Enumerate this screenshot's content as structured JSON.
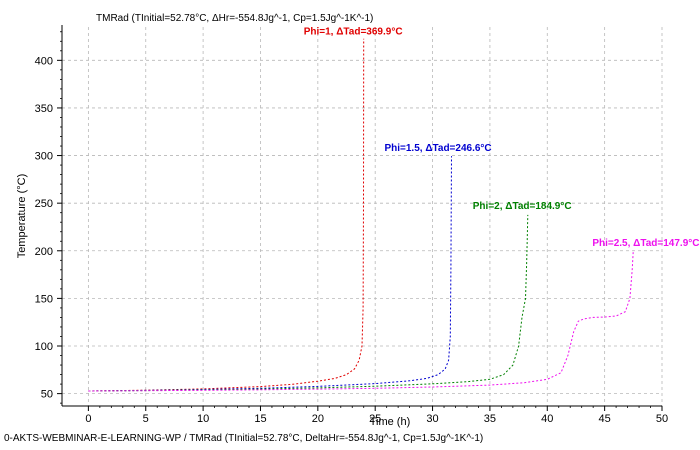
{
  "chart_data": {
    "type": "line",
    "title": "TMRad (TInitial=52.78°C, ΔHr=-554.8Jg^-1, Cp=1.5Jg^-1K^-1)",
    "xlabel": "Time (h)",
    "ylabel": "Temperature (°C)",
    "xlim": [
      -2.3,
      50
    ],
    "ylim": [
      37,
      435
    ],
    "xticks": [
      0,
      5,
      10,
      15,
      20,
      25,
      30,
      35,
      40,
      45,
      50
    ],
    "yticks": [
      50,
      100,
      150,
      200,
      250,
      300,
      350,
      400
    ],
    "grid": true,
    "series": [
      {
        "name": "Phi=1, ΔTad=369.9°C",
        "color": "#e00000",
        "points": [
          [
            0,
            52.8
          ],
          [
            5,
            53.6
          ],
          [
            10,
            55.0
          ],
          [
            15,
            57.4
          ],
          [
            18,
            60.0
          ],
          [
            20,
            63.0
          ],
          [
            21.5,
            66.0
          ],
          [
            22.5,
            70.0
          ],
          [
            23.2,
            76.0
          ],
          [
            23.6,
            85.0
          ],
          [
            23.85,
            100.0
          ],
          [
            23.95,
            140.0
          ],
          [
            23.98,
            250.0
          ],
          [
            24.0,
            422.7
          ]
        ]
      },
      {
        "name": "Phi=1.5, ΔTad=246.6°C",
        "color": "#0000d0",
        "points": [
          [
            0,
            52.8
          ],
          [
            5,
            53.4
          ],
          [
            10,
            54.3
          ],
          [
            15,
            55.6
          ],
          [
            20,
            57.6
          ],
          [
            25,
            60.5
          ],
          [
            28,
            63.5
          ],
          [
            29.5,
            66.0
          ],
          [
            30.5,
            70.0
          ],
          [
            31.1,
            76.0
          ],
          [
            31.4,
            85.0
          ],
          [
            31.55,
            110.0
          ],
          [
            31.6,
            180.0
          ],
          [
            31.65,
            299.4
          ]
        ]
      },
      {
        "name": "Phi=2, ΔTad=184.9°C",
        "color": "#008000",
        "points": [
          [
            0,
            52.8
          ],
          [
            5,
            53.2
          ],
          [
            10,
            53.8
          ],
          [
            15,
            54.7
          ],
          [
            20,
            56.0
          ],
          [
            25,
            57.8
          ],
          [
            30,
            60.3
          ],
          [
            33,
            62.5
          ],
          [
            35,
            65.0
          ],
          [
            36.2,
            70.0
          ],
          [
            37.0,
            80.0
          ],
          [
            37.5,
            100.0
          ],
          [
            37.8,
            130.0
          ],
          [
            38.1,
            150.0
          ],
          [
            38.2,
            185.0
          ],
          [
            38.25,
            210.0
          ],
          [
            38.3,
            237.7
          ]
        ]
      },
      {
        "name": "Phi=2.5, ΔTad=147.9°C",
        "color": "#ee10ee",
        "points": [
          [
            0,
            52.8
          ],
          [
            5,
            53.1
          ],
          [
            10,
            53.5
          ],
          [
            15,
            54.0
          ],
          [
            20,
            54.7
          ],
          [
            25,
            55.6
          ],
          [
            30,
            57.0
          ],
          [
            35,
            59.0
          ],
          [
            38,
            61.5
          ],
          [
            40,
            65.0
          ],
          [
            41.2,
            72.0
          ],
          [
            41.8,
            90.0
          ],
          [
            42.3,
            115.0
          ],
          [
            42.7,
            126.0
          ],
          [
            43.2,
            128.5
          ],
          [
            44,
            130.0
          ],
          [
            45,
            130.5
          ],
          [
            46,
            131.5
          ],
          [
            46.8,
            136.0
          ],
          [
            47.2,
            150.0
          ],
          [
            47.4,
            180.0
          ],
          [
            47.5,
            200.7
          ]
        ]
      }
    ],
    "annotations": [
      {
        "text": "Phi=1, ΔTad=369.9°C",
        "color": "#e00000"
      },
      {
        "text": "Phi=1.5, ΔTad=246.6°C",
        "color": "#0000d0"
      },
      {
        "text": "Phi=2, ΔTad=184.9°C",
        "color": "#008000"
      },
      {
        "text": "Phi=2.5, ΔTad=147.9°C",
        "color": "#ee10ee"
      }
    ]
  },
  "footer": "0-AKTS-WEBMINAR-E-LEARNING-WP / TMRad (TInitial=52.78°C, DeltaHr=-554.8Jg^-1, Cp=1.5Jg^-1K^-1)"
}
